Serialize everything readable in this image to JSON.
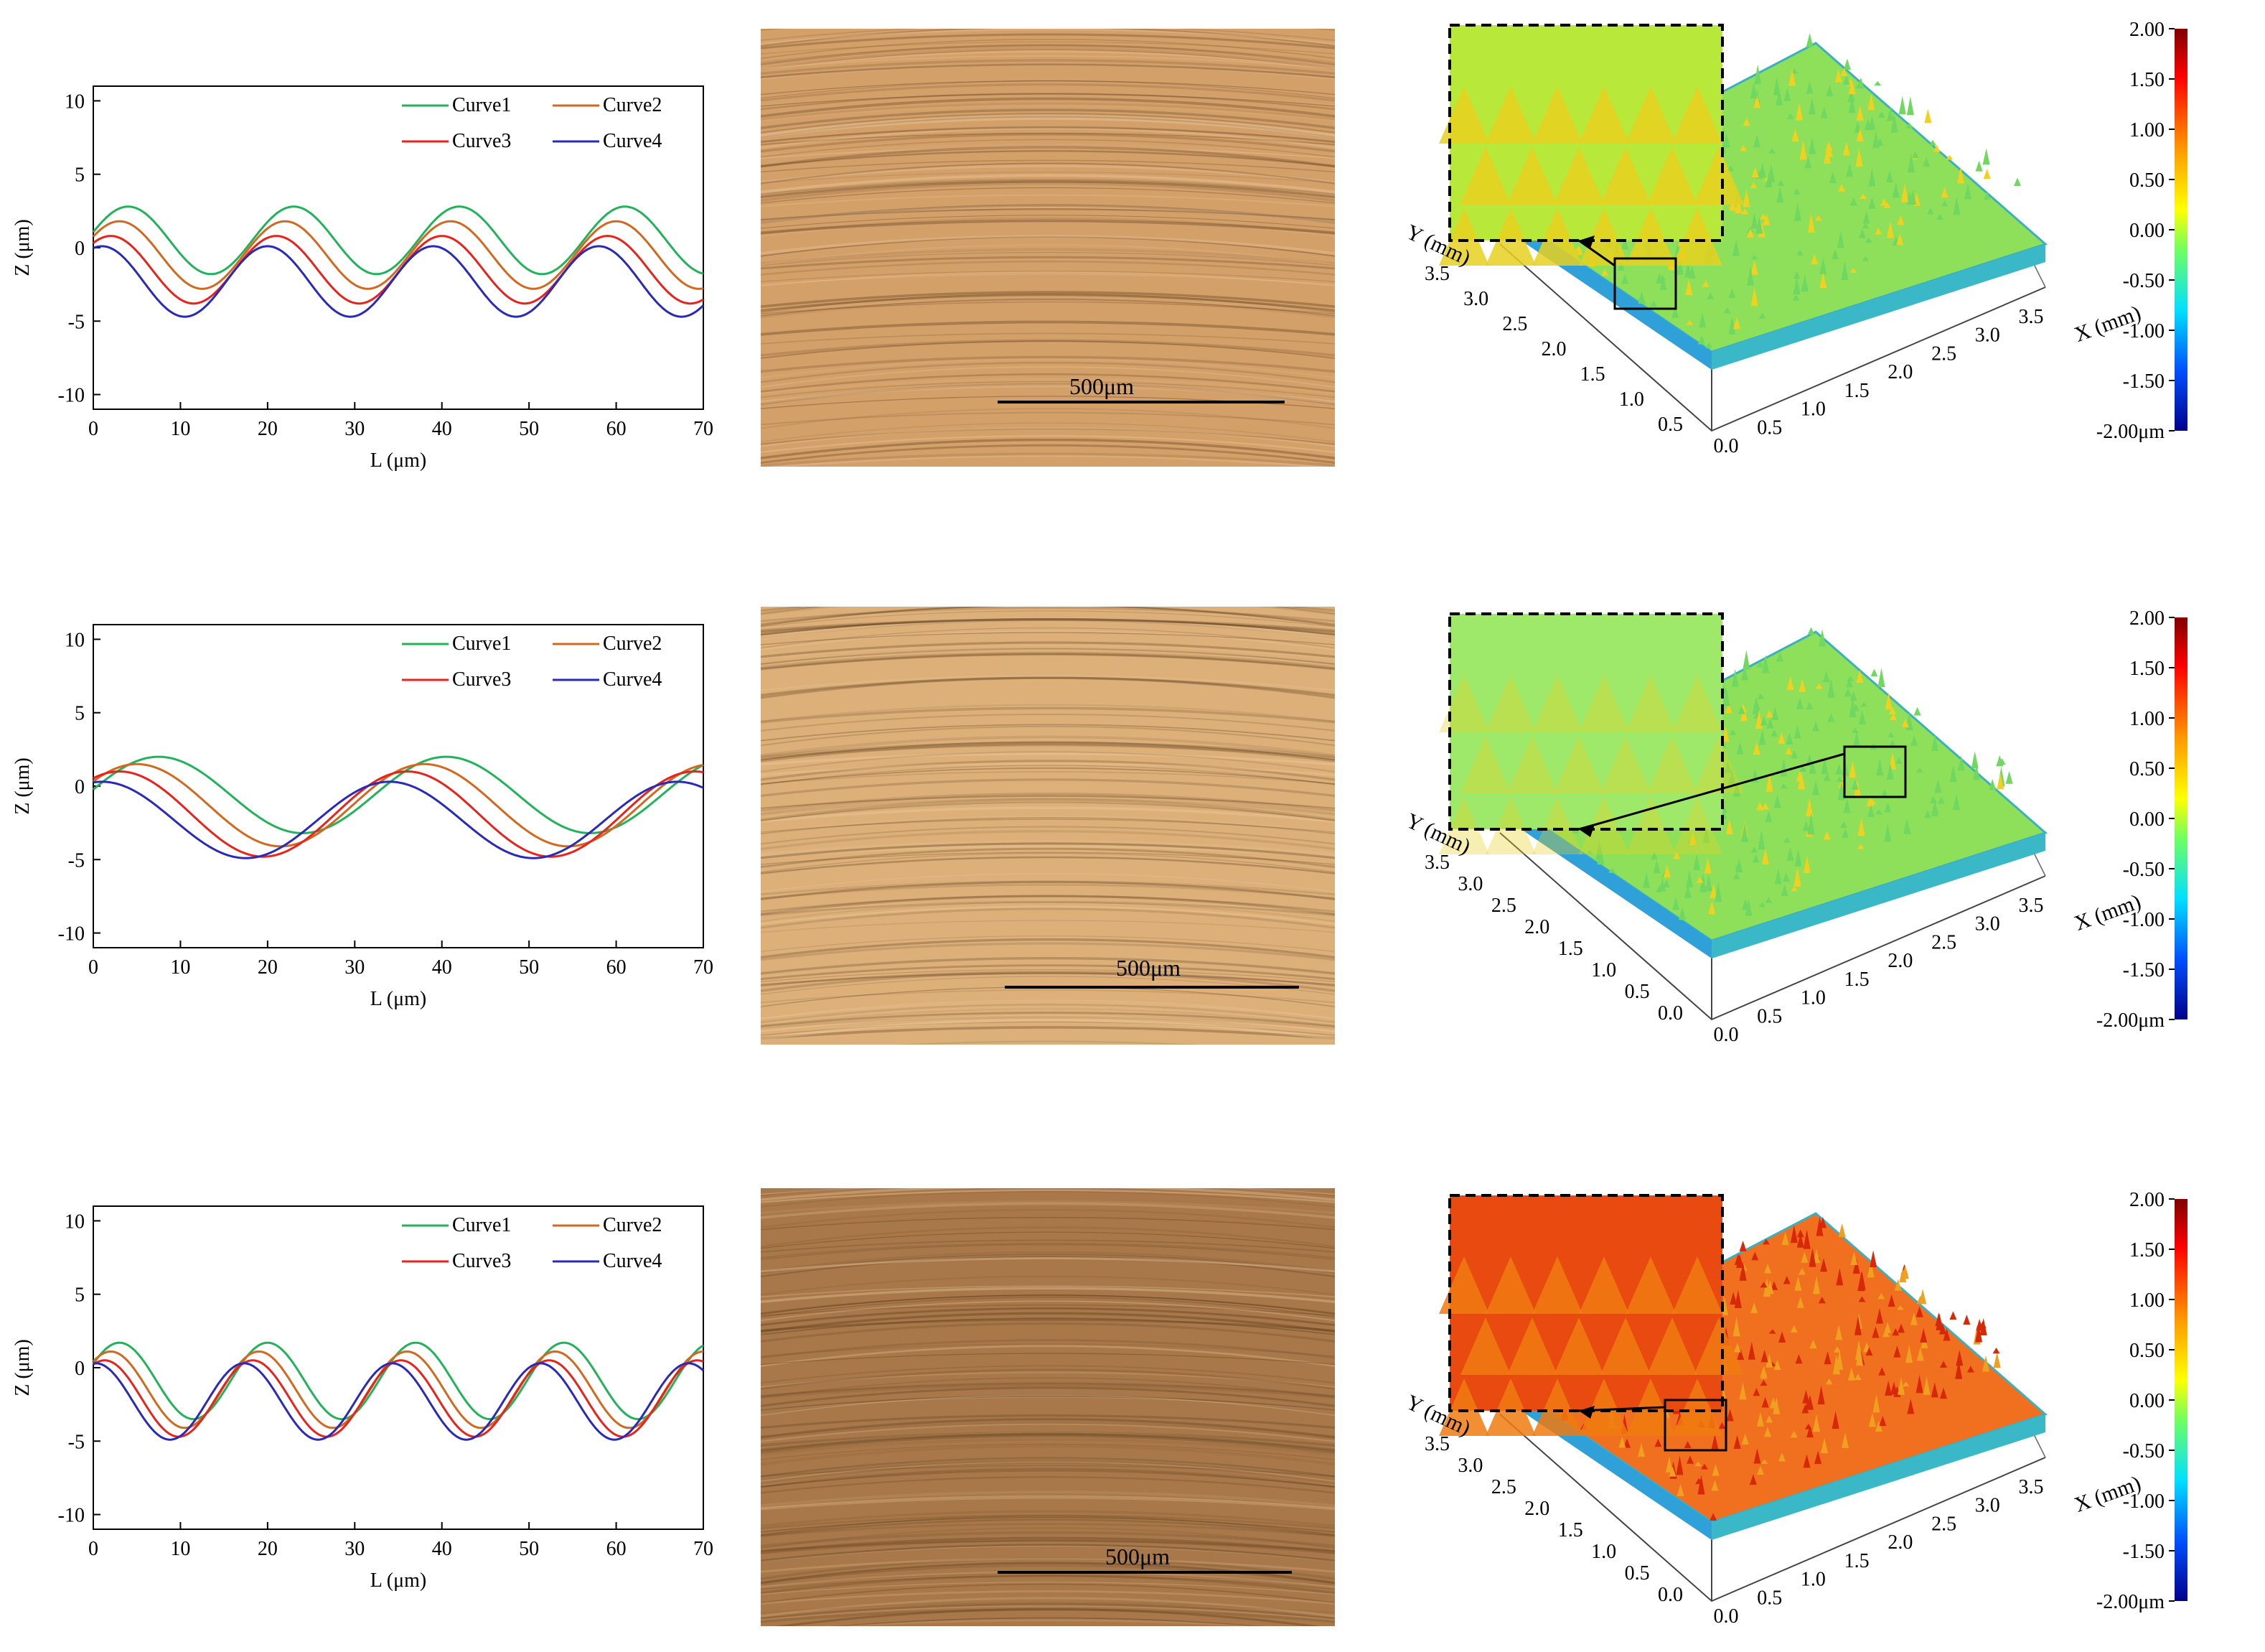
{
  "rows": [
    {
      "chart_data": {
        "type": "line",
        "xlabel": "L (μm)",
        "ylabel": "Z (μm)",
        "xlim": [
          0,
          70
        ],
        "ylim": [
          -11,
          11
        ],
        "xticks": [
          0,
          10,
          20,
          30,
          40,
          50,
          60,
          70
        ],
        "xtick_labels": [
          "0",
          "10",
          "20",
          "30",
          "40",
          "50",
          "60",
          "70"
        ],
        "yticks": [
          10,
          5,
          0,
          -5,
          -10
        ],
        "ytick_labels": [
          "10",
          "5",
          "0",
          "-5",
          "-10"
        ],
        "legend_position": "top-right",
        "period": 19,
        "series": [
          {
            "name": "Curve1",
            "color": "#22b35a",
            "mean": 0.5,
            "amplitude": 2.3,
            "peak_x": 4
          },
          {
            "name": "Curve2",
            "color": "#d2691e",
            "mean": -0.5,
            "amplitude": 2.3,
            "peak_x": 3
          },
          {
            "name": "Curve3",
            "color": "#e8231c",
            "mean": -1.5,
            "amplitude": 2.3,
            "peak_x": 2
          },
          {
            "name": "Curve4",
            "color": "#2a2ab8",
            "mean": -2.3,
            "amplitude": 2.4,
            "peak_x": 1
          }
        ]
      },
      "scale_bar": "500μm",
      "micro_color": "#d4a06a",
      "surface": {
        "y_axis_label": "Y (mm)",
        "x_axis_label": "X (mm)",
        "y_ticks": [
          "3.5",
          "3.0",
          "2.5",
          "2.0",
          "1.5",
          "1.0",
          "0.5"
        ],
        "x_ticks": [
          "0.0",
          "0.5",
          "1.0",
          "1.5",
          "2.0",
          "2.5",
          "3.0",
          "3.5"
        ],
        "surface_color": "#8ee05a",
        "inset_color": "#b8e83a"
      },
      "colorbar": {
        "ticks": [
          "2.00",
          "1.50",
          "1.00",
          "0.50",
          "0.00",
          "-0.50",
          "-1.00",
          "-1.50",
          "-2.00μm"
        ]
      }
    },
    {
      "chart_data": {
        "type": "line",
        "xlabel": "L (μm)",
        "ylabel": "Z (μm)",
        "xlim": [
          0,
          70
        ],
        "ylim": [
          -11,
          11
        ],
        "xticks": [
          0,
          10,
          20,
          30,
          40,
          50,
          60,
          70
        ],
        "xtick_labels": [
          "0",
          "10",
          "20",
          "30",
          "40",
          "50",
          "60",
          "70"
        ],
        "yticks": [
          10,
          5,
          0,
          -5,
          -10
        ],
        "ytick_labels": [
          "10",
          "5",
          "0",
          "-5",
          "-10"
        ],
        "legend_position": "top-right",
        "period": 33,
        "series": [
          {
            "name": "Curve1",
            "color": "#22b35a",
            "mean": -0.6,
            "amplitude": 2.6,
            "peak_x": 7.5
          },
          {
            "name": "Curve2",
            "color": "#d2691e",
            "mean": -1.3,
            "amplitude": 2.8,
            "peak_x": 5
          },
          {
            "name": "Curve3",
            "color": "#e8231c",
            "mean": -1.9,
            "amplitude": 2.9,
            "peak_x": 3
          },
          {
            "name": "Curve4",
            "color": "#2a2ab8",
            "mean": -2.3,
            "amplitude": 2.6,
            "peak_x": 1
          }
        ]
      },
      "scale_bar": "500μm",
      "micro_color": "#ddb07a",
      "surface": {
        "y_axis_label": "Y (mm)",
        "x_axis_label": "X (mm)",
        "y_ticks": [
          "3.5",
          "3.0",
          "2.5",
          "2.0",
          "1.5",
          "1.0",
          "0.5",
          "0.0"
        ],
        "x_ticks": [
          "0.0",
          "0.5",
          "1.0",
          "1.5",
          "2.0",
          "2.5",
          "3.0",
          "3.5"
        ],
        "surface_color": "#8ee05a",
        "inset_color": "#9ee86a"
      },
      "colorbar": {
        "ticks": [
          "2.00",
          "1.50",
          "1.00",
          "0.50",
          "0.00",
          "-0.50",
          "-1.00",
          "-1.50",
          "-2.00μm"
        ]
      }
    },
    {
      "chart_data": {
        "type": "line",
        "xlabel": "L (μm)",
        "ylabel": "Z (μm)",
        "xlim": [
          0,
          70
        ],
        "ylim": [
          -11,
          11
        ],
        "xticks": [
          0,
          10,
          20,
          30,
          40,
          50,
          60,
          70
        ],
        "xtick_labels": [
          "0",
          "10",
          "20",
          "30",
          "40",
          "50",
          "60",
          "70"
        ],
        "yticks": [
          10,
          5,
          0,
          -5,
          -10
        ],
        "ytick_labels": [
          "10",
          "5",
          "0",
          "-5",
          "-10"
        ],
        "legend_position": "top-right",
        "period": 17,
        "series": [
          {
            "name": "Curve1",
            "color": "#22b35a",
            "mean": -0.9,
            "amplitude": 2.6,
            "peak_x": 3
          },
          {
            "name": "Curve2",
            "color": "#d2691e",
            "mean": -1.5,
            "amplitude": 2.6,
            "peak_x": 2
          },
          {
            "name": "Curve3",
            "color": "#e8231c",
            "mean": -2.1,
            "amplitude": 2.6,
            "peak_x": 1.3
          },
          {
            "name": "Curve4",
            "color": "#2a2ab8",
            "mean": -2.3,
            "amplitude": 2.6,
            "peak_x": 0.3
          }
        ]
      },
      "scale_bar": "500μm",
      "micro_color": "#a8784a",
      "surface": {
        "y_axis_label": "Y (mm)",
        "x_axis_label": "X (mm)",
        "y_ticks": [
          "3.5",
          "3.0",
          "2.5",
          "2.0",
          "1.5",
          "1.0",
          "0.5",
          "0.0"
        ],
        "x_ticks": [
          "0.0",
          "0.5",
          "1.0",
          "1.5",
          "2.0",
          "2.5",
          "3.0",
          "3.5"
        ],
        "surface_color": "#f07020",
        "inset_color": "#e84a10"
      },
      "colorbar": {
        "ticks": [
          "2.00",
          "1.50",
          "1.00",
          "0.50",
          "0.00",
          "-0.50",
          "-1.00",
          "-1.50",
          "-2.00μm"
        ]
      }
    }
  ]
}
